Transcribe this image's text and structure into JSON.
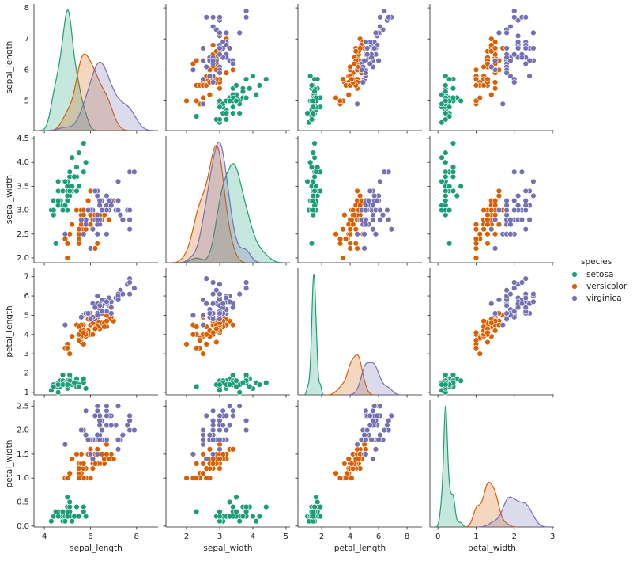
{
  "chart_data": {
    "type": "pairplot",
    "legend_title": "species",
    "legend": "right",
    "variables": [
      {
        "name": "sepal_length",
        "xlim": [
          3.55,
          8.93
        ],
        "xticks": [
          4,
          6,
          8
        ],
        "ylim": [
          4.04,
          8.13
        ],
        "yticks": [
          5,
          6,
          7,
          8
        ]
      },
      {
        "name": "sepal_width",
        "xlim": [
          1.38,
          5.12
        ],
        "xticks": [
          2,
          3,
          4,
          5
        ],
        "ylim": [
          1.9,
          4.55
        ],
        "yticks": [
          {
            "value": 2,
            "label": "2.0"
          },
          {
            "value": 2.5,
            "label": "2.5"
          },
          {
            "value": 3,
            "label": "3.0"
          },
          {
            "value": 3.5,
            "label": "3.5"
          },
          {
            "value": 4,
            "label": "4.0"
          },
          {
            "value": 4.5,
            "label": "4.5"
          }
        ]
      },
      {
        "name": "petal_length",
        "xlim": [
          0.33,
          9.05
        ],
        "xticks": [
          2,
          4,
          6,
          8
        ],
        "ylim": [
          0.87,
          7.44
        ],
        "yticks": [
          1,
          2,
          3,
          4,
          5,
          6,
          7
        ]
      },
      {
        "name": "petal_width",
        "xlim": [
          -0.21,
          3.04
        ],
        "xticks": [
          0,
          1,
          2,
          3
        ],
        "ylim": [
          -0.02,
          2.62
        ],
        "yticks": [
          {
            "value": 0,
            "label": "0.0"
          },
          {
            "value": 0.5,
            "label": "0.5"
          },
          {
            "value": 1,
            "label": "1.0"
          },
          {
            "value": 1.5,
            "label": "1.5"
          },
          {
            "value": 2,
            "label": "2.0"
          },
          {
            "value": 2.5,
            "label": "2.5"
          }
        ]
      }
    ],
    "series": [
      {
        "name": "setosa",
        "color": "#1b9e77",
        "values": {
          "sepal_length": [
            5.1,
            4.9,
            4.7,
            4.6,
            5.0,
            5.4,
            4.6,
            5.0,
            4.4,
            4.9,
            5.4,
            4.8,
            4.8,
            4.3,
            5.8,
            5.7,
            5.4,
            5.1,
            5.7,
            5.1,
            5.4,
            5.1,
            4.6,
            5.1,
            4.8,
            5.0,
            5.0,
            5.2,
            5.2,
            4.7,
            4.8,
            5.4,
            5.2,
            5.5,
            4.9,
            5.0,
            5.5,
            4.9,
            4.4,
            5.1,
            5.0,
            4.5,
            4.4,
            5.0,
            5.1,
            4.8,
            5.1,
            4.6,
            5.3,
            5.0
          ],
          "sepal_width": [
            3.5,
            3.0,
            3.2,
            3.1,
            3.6,
            3.9,
            3.4,
            3.4,
            2.9,
            3.1,
            3.7,
            3.4,
            3.0,
            3.0,
            4.0,
            4.4,
            3.9,
            3.5,
            3.8,
            3.8,
            3.4,
            3.7,
            3.6,
            3.3,
            3.4,
            3.0,
            3.4,
            3.5,
            3.4,
            3.2,
            3.1,
            3.4,
            4.1,
            4.2,
            3.1,
            3.2,
            3.5,
            3.6,
            3.0,
            3.4,
            3.5,
            2.3,
            3.2,
            3.5,
            3.8,
            3.0,
            3.8,
            3.2,
            3.7,
            3.3
          ],
          "petal_length": [
            1.4,
            1.4,
            1.3,
            1.5,
            1.4,
            1.7,
            1.4,
            1.5,
            1.4,
            1.5,
            1.5,
            1.6,
            1.4,
            1.1,
            1.2,
            1.5,
            1.3,
            1.4,
            1.7,
            1.5,
            1.7,
            1.5,
            1.0,
            1.7,
            1.9,
            1.6,
            1.6,
            1.5,
            1.4,
            1.6,
            1.6,
            1.5,
            1.5,
            1.4,
            1.5,
            1.2,
            1.3,
            1.4,
            1.3,
            1.5,
            1.3,
            1.3,
            1.3,
            1.6,
            1.9,
            1.4,
            1.6,
            1.4,
            1.5,
            1.4
          ],
          "petal_width": [
            0.2,
            0.2,
            0.2,
            0.2,
            0.2,
            0.4,
            0.3,
            0.2,
            0.2,
            0.1,
            0.2,
            0.2,
            0.1,
            0.1,
            0.2,
            0.4,
            0.4,
            0.3,
            0.3,
            0.3,
            0.2,
            0.4,
            0.2,
            0.5,
            0.2,
            0.2,
            0.4,
            0.2,
            0.2,
            0.2,
            0.2,
            0.4,
            0.1,
            0.2,
            0.2,
            0.2,
            0.2,
            0.1,
            0.2,
            0.2,
            0.3,
            0.3,
            0.2,
            0.6,
            0.4,
            0.3,
            0.2,
            0.2,
            0.2,
            0.2
          ]
        }
      },
      {
        "name": "versicolor",
        "color": "#d95f02",
        "values": {
          "sepal_length": [
            7.0,
            6.4,
            6.9,
            5.5,
            6.5,
            5.7,
            6.3,
            4.9,
            6.6,
            5.2,
            5.0,
            5.9,
            6.0,
            6.1,
            5.6,
            6.7,
            5.6,
            5.8,
            6.2,
            5.6,
            5.9,
            6.1,
            6.3,
            6.1,
            6.4,
            6.6,
            6.8,
            6.7,
            6.0,
            5.7,
            5.5,
            5.5,
            5.8,
            6.0,
            5.4,
            6.0,
            6.7,
            6.3,
            5.6,
            5.5,
            5.5,
            6.1,
            5.8,
            5.0,
            5.6,
            5.7,
            5.7,
            6.2,
            5.1,
            5.7
          ],
          "sepal_width": [
            3.2,
            3.2,
            3.1,
            2.3,
            2.8,
            2.8,
            3.3,
            2.4,
            2.9,
            2.7,
            2.0,
            3.0,
            2.2,
            2.9,
            2.9,
            3.1,
            3.0,
            2.7,
            2.2,
            2.5,
            3.2,
            2.8,
            2.5,
            2.8,
            2.9,
            3.0,
            2.8,
            3.0,
            2.9,
            2.6,
            2.4,
            2.4,
            2.7,
            2.7,
            3.0,
            3.4,
            3.1,
            2.3,
            3.0,
            2.5,
            2.6,
            3.0,
            2.6,
            2.3,
            2.7,
            3.0,
            2.9,
            2.9,
            2.5,
            2.8
          ],
          "petal_length": [
            4.7,
            4.5,
            4.9,
            4.0,
            4.6,
            4.5,
            4.7,
            3.3,
            4.6,
            3.9,
            3.5,
            4.2,
            4.0,
            4.7,
            3.6,
            4.4,
            4.5,
            4.1,
            4.5,
            3.9,
            4.8,
            4.0,
            4.9,
            4.7,
            4.3,
            4.4,
            4.8,
            5.0,
            4.5,
            3.5,
            3.8,
            3.7,
            3.9,
            5.1,
            4.5,
            4.5,
            4.7,
            4.4,
            4.1,
            4.0,
            4.4,
            4.6,
            4.0,
            3.3,
            4.2,
            4.2,
            4.2,
            4.3,
            3.0,
            4.1
          ],
          "petal_width": [
            1.4,
            1.5,
            1.5,
            1.3,
            1.5,
            1.3,
            1.6,
            1.0,
            1.3,
            1.4,
            1.0,
            1.5,
            1.0,
            1.4,
            1.3,
            1.4,
            1.5,
            1.0,
            1.5,
            1.1,
            1.8,
            1.3,
            1.5,
            1.2,
            1.3,
            1.4,
            1.4,
            1.7,
            1.5,
            1.0,
            1.1,
            1.0,
            1.2,
            1.6,
            1.5,
            1.6,
            1.5,
            1.3,
            1.3,
            1.3,
            1.2,
            1.4,
            1.2,
            1.0,
            1.3,
            1.2,
            1.3,
            1.3,
            1.1,
            1.3
          ]
        }
      },
      {
        "name": "virginica",
        "color": "#7570b3",
        "values": {
          "sepal_length": [
            6.3,
            5.8,
            7.1,
            6.3,
            6.5,
            7.6,
            4.9,
            7.3,
            6.7,
            7.2,
            6.5,
            6.4,
            6.8,
            5.7,
            5.8,
            6.4,
            6.5,
            7.7,
            7.7,
            6.0,
            6.9,
            5.6,
            7.7,
            6.3,
            6.7,
            7.2,
            6.2,
            6.1,
            6.4,
            7.2,
            7.4,
            7.9,
            6.4,
            6.3,
            6.1,
            7.7,
            6.3,
            6.4,
            6.0,
            6.9,
            6.7,
            6.9,
            5.8,
            6.8,
            6.7,
            6.7,
            6.3,
            6.5,
            6.2,
            5.9
          ],
          "sepal_width": [
            3.3,
            2.7,
            3.0,
            2.9,
            3.0,
            3.0,
            2.5,
            2.9,
            2.5,
            3.6,
            3.2,
            2.7,
            3.0,
            2.5,
            2.8,
            3.2,
            3.0,
            3.8,
            2.6,
            2.2,
            3.2,
            2.8,
            2.8,
            2.7,
            3.3,
            3.2,
            2.8,
            3.0,
            2.8,
            3.0,
            2.8,
            3.8,
            2.8,
            2.8,
            2.6,
            3.0,
            3.4,
            3.1,
            3.0,
            3.1,
            3.1,
            3.1,
            2.7,
            3.2,
            3.3,
            3.0,
            2.5,
            3.0,
            3.4,
            3.0
          ],
          "petal_length": [
            6.0,
            5.1,
            5.9,
            5.6,
            5.8,
            6.6,
            4.5,
            6.3,
            5.8,
            6.1,
            5.1,
            5.3,
            5.5,
            5.0,
            5.1,
            5.3,
            5.5,
            6.7,
            6.9,
            5.0,
            5.7,
            4.9,
            6.7,
            4.9,
            5.7,
            6.0,
            4.8,
            4.9,
            5.6,
            5.8,
            6.1,
            6.4,
            5.6,
            5.1,
            5.6,
            6.1,
            5.6,
            5.5,
            4.8,
            5.4,
            5.6,
            5.1,
            5.1,
            5.9,
            5.7,
            5.2,
            5.0,
            5.2,
            5.4,
            5.1
          ],
          "petal_width": [
            2.5,
            1.9,
            2.1,
            1.8,
            2.2,
            2.1,
            1.7,
            1.8,
            1.8,
            2.5,
            2.0,
            1.9,
            2.1,
            2.0,
            2.4,
            2.3,
            1.8,
            2.2,
            2.3,
            1.5,
            2.3,
            2.0,
            2.0,
            1.8,
            2.1,
            1.8,
            1.8,
            1.8,
            2.1,
            1.6,
            1.9,
            2.0,
            2.2,
            1.5,
            1.4,
            2.3,
            2.4,
            1.8,
            1.8,
            2.1,
            2.4,
            2.3,
            1.9,
            2.3,
            2.5,
            2.3,
            1.9,
            2.0,
            2.3,
            1.8
          ]
        }
      }
    ]
  }
}
